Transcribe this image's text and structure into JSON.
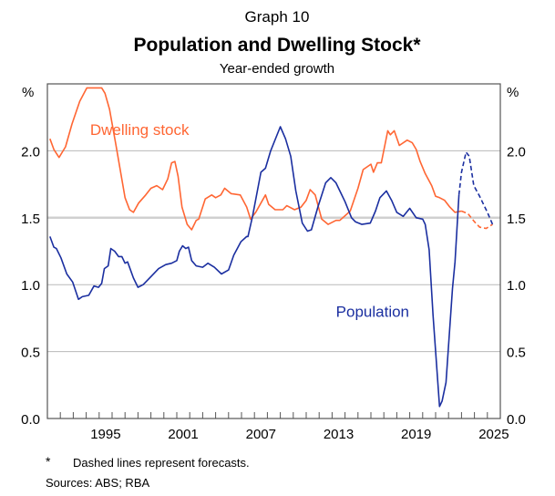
{
  "chart_data": {
    "type": "line",
    "graph_number": "Graph 10",
    "title": "Population and Dwelling Stock*",
    "subtitle": "Year-ended growth",
    "ylabel_left": "%",
    "ylabel_right": "%",
    "xlim": [
      1991,
      2026
    ],
    "ylim": [
      0,
      2.5
    ],
    "yticks": [
      0,
      0.5,
      1,
      1.5,
      2
    ],
    "ytick_labels": [
      "0.0",
      "0.5",
      "1.0",
      "1.5",
      "2.0"
    ],
    "xtick_labels": [
      {
        "year": 1995,
        "label": "1995"
      },
      {
        "year": 2001,
        "label": "2001"
      },
      {
        "year": 2007,
        "label": "2007"
      },
      {
        "year": 2013,
        "label": "2013"
      },
      {
        "year": 2019,
        "label": "2019"
      },
      {
        "year": 2025,
        "label": "2025"
      }
    ],
    "grid": true,
    "series": [
      {
        "name": "Dwelling stock",
        "color": "#FF6633",
        "label_year": 1994.3,
        "label_value": 2.12,
        "actual": [
          [
            1991.2,
            2.09
          ],
          [
            1991.5,
            2.01
          ],
          [
            1991.9,
            1.95
          ],
          [
            1992.4,
            2.03
          ],
          [
            1992.9,
            2.2
          ],
          [
            1993.5,
            2.37
          ],
          [
            1994.05,
            2.47
          ],
          [
            1994.5,
            2.47
          ],
          [
            1995.2,
            2.47
          ],
          [
            1995.45,
            2.43
          ],
          [
            1995.8,
            2.31
          ],
          [
            1996.3,
            2.04
          ],
          [
            1997.0,
            1.65
          ],
          [
            1997.35,
            1.56
          ],
          [
            1997.65,
            1.54
          ],
          [
            1998.05,
            1.61
          ],
          [
            1998.6,
            1.67
          ],
          [
            1999.0,
            1.72
          ],
          [
            1999.45,
            1.74
          ],
          [
            1999.9,
            1.71
          ],
          [
            2000.3,
            1.79
          ],
          [
            2000.6,
            1.91
          ],
          [
            2000.85,
            1.92
          ],
          [
            2001.1,
            1.81
          ],
          [
            2001.4,
            1.58
          ],
          [
            2001.8,
            1.45
          ],
          [
            2002.15,
            1.41
          ],
          [
            2002.5,
            1.48
          ],
          [
            2002.7,
            1.49
          ],
          [
            2003.2,
            1.64
          ],
          [
            2003.7,
            1.67
          ],
          [
            2004.0,
            1.65
          ],
          [
            2004.4,
            1.67
          ],
          [
            2004.7,
            1.72
          ],
          [
            2005.2,
            1.68
          ],
          [
            2005.9,
            1.67
          ],
          [
            2006.4,
            1.58
          ],
          [
            2006.7,
            1.49
          ],
          [
            2007.1,
            1.54
          ],
          [
            2007.5,
            1.61
          ],
          [
            2007.85,
            1.67
          ],
          [
            2008.1,
            1.6
          ],
          [
            2008.6,
            1.56
          ],
          [
            2009.2,
            1.56
          ],
          [
            2009.5,
            1.59
          ],
          [
            2010.1,
            1.56
          ],
          [
            2010.6,
            1.58
          ],
          [
            2011.0,
            1.63
          ],
          [
            2011.3,
            1.71
          ],
          [
            2011.7,
            1.67
          ],
          [
            2012.2,
            1.49
          ],
          [
            2012.7,
            1.45
          ],
          [
            2013.3,
            1.48
          ],
          [
            2013.6,
            1.48
          ],
          [
            2014.4,
            1.55
          ],
          [
            2015.0,
            1.72
          ],
          [
            2015.4,
            1.86
          ],
          [
            2016.0,
            1.9
          ],
          [
            2016.2,
            1.84
          ],
          [
            2016.5,
            1.91
          ],
          [
            2016.8,
            1.91
          ],
          [
            2017.3,
            2.15
          ],
          [
            2017.5,
            2.12
          ],
          [
            2017.8,
            2.15
          ],
          [
            2018.2,
            2.04
          ],
          [
            2018.8,
            2.08
          ],
          [
            2019.2,
            2.06
          ],
          [
            2019.5,
            2.01
          ],
          [
            2019.8,
            1.92
          ],
          [
            2020.2,
            1.83
          ],
          [
            2020.7,
            1.74
          ],
          [
            2021.0,
            1.66
          ],
          [
            2021.3,
            1.65
          ],
          [
            2021.7,
            1.63
          ],
          [
            2022.1,
            1.58
          ],
          [
            2022.5,
            1.54
          ],
          [
            2023.0,
            1.55
          ]
        ],
        "forecast": [
          [
            2023.0,
            1.55
          ],
          [
            2023.5,
            1.53
          ],
          [
            2024.0,
            1.47
          ],
          [
            2024.4,
            1.43
          ],
          [
            2024.9,
            1.42
          ],
          [
            2025.4,
            1.45
          ]
        ]
      },
      {
        "name": "Population",
        "color": "#1B2FA0",
        "label_year": 2013.3,
        "label_value": 0.76,
        "actual": [
          [
            1991.2,
            1.36
          ],
          [
            1991.5,
            1.28
          ],
          [
            1991.7,
            1.27
          ],
          [
            1992.05,
            1.2
          ],
          [
            1992.5,
            1.08
          ],
          [
            1992.95,
            1.02
          ],
          [
            1993.4,
            0.89
          ],
          [
            1993.7,
            0.91
          ],
          [
            1994.2,
            0.92
          ],
          [
            1994.6,
            0.99
          ],
          [
            1994.95,
            0.98
          ],
          [
            1995.2,
            1.01
          ],
          [
            1995.4,
            1.12
          ],
          [
            1995.7,
            1.14
          ],
          [
            1995.9,
            1.27
          ],
          [
            1996.2,
            1.25
          ],
          [
            1996.5,
            1.21
          ],
          [
            1996.75,
            1.21
          ],
          [
            1997.0,
            1.16
          ],
          [
            1997.2,
            1.17
          ],
          [
            1997.65,
            1.05
          ],
          [
            1998.0,
            0.98
          ],
          [
            1998.4,
            1.0
          ],
          [
            1999.0,
            1.06
          ],
          [
            1999.6,
            1.12
          ],
          [
            2000.15,
            1.15
          ],
          [
            2000.6,
            1.16
          ],
          [
            2001.0,
            1.18
          ],
          [
            2001.2,
            1.25
          ],
          [
            2001.45,
            1.29
          ],
          [
            2001.7,
            1.27
          ],
          [
            2001.9,
            1.28
          ],
          [
            2002.15,
            1.18
          ],
          [
            2002.5,
            1.14
          ],
          [
            2003.0,
            1.13
          ],
          [
            2003.4,
            1.16
          ],
          [
            2003.9,
            1.13
          ],
          [
            2004.45,
            1.08
          ],
          [
            2005.0,
            1.11
          ],
          [
            2005.4,
            1.22
          ],
          [
            2005.95,
            1.32
          ],
          [
            2006.4,
            1.36
          ],
          [
            2006.5,
            1.36
          ],
          [
            2006.85,
            1.51
          ],
          [
            2007.5,
            1.84
          ],
          [
            2007.85,
            1.87
          ],
          [
            2008.25,
            2.0
          ],
          [
            2009.0,
            2.18
          ],
          [
            2009.4,
            2.09
          ],
          [
            2009.8,
            1.96
          ],
          [
            2010.2,
            1.7
          ],
          [
            2010.7,
            1.46
          ],
          [
            2011.1,
            1.4
          ],
          [
            2011.4,
            1.41
          ],
          [
            2011.9,
            1.58
          ],
          [
            2012.5,
            1.76
          ],
          [
            2012.9,
            1.8
          ],
          [
            2013.3,
            1.76
          ],
          [
            2013.6,
            1.7
          ],
          [
            2014.0,
            1.62
          ],
          [
            2014.5,
            1.5
          ],
          [
            2014.8,
            1.47
          ],
          [
            2015.3,
            1.45
          ],
          [
            2015.95,
            1.46
          ],
          [
            2016.35,
            1.55
          ],
          [
            2016.7,
            1.65
          ],
          [
            2017.2,
            1.7
          ],
          [
            2017.6,
            1.63
          ],
          [
            2018.0,
            1.54
          ],
          [
            2018.5,
            1.51
          ],
          [
            2019.0,
            1.57
          ],
          [
            2019.5,
            1.5
          ],
          [
            2020.0,
            1.49
          ],
          [
            2020.2,
            1.45
          ],
          [
            2020.5,
            1.26
          ],
          [
            2020.8,
            0.77
          ],
          [
            2021.3,
            0.09
          ],
          [
            2021.5,
            0.13
          ],
          [
            2021.8,
            0.27
          ],
          [
            2022.3,
            0.97
          ],
          [
            2022.5,
            1.17
          ],
          [
            2022.8,
            1.67
          ]
        ],
        "forecast": [
          [
            2022.8,
            1.67
          ],
          [
            2023.0,
            1.84
          ],
          [
            2023.35,
            1.99
          ],
          [
            2023.6,
            1.96
          ],
          [
            2023.95,
            1.74
          ],
          [
            2024.4,
            1.66
          ],
          [
            2025.0,
            1.54
          ],
          [
            2025.4,
            1.45
          ]
        ]
      }
    ],
    "footnote_marker": "*",
    "footnote": "Dashed lines represent forecasts.",
    "sources": "Sources: ABS; RBA"
  }
}
